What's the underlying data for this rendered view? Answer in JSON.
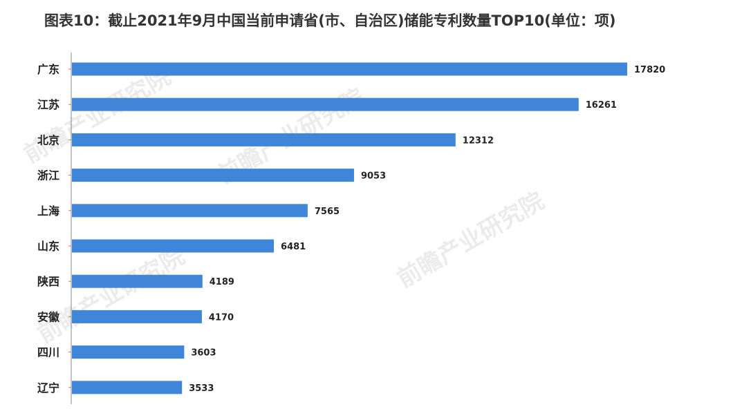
{
  "title": "图表10：截止2021年9月中国当前申请省(市、自治区)储能专利数量TOP10(单位：项)",
  "watermark": "前瞻产业研究院",
  "colors": {
    "bar": "#3f86d8",
    "text": "#222222",
    "axis": "#888888"
  },
  "chart_data": {
    "type": "bar",
    "orientation": "horizontal",
    "title": "图表10：截止2021年9月中国当前申请省(市、自治区)储能专利数量TOP10(单位：项)",
    "categories": [
      "广东",
      "江苏",
      "北京",
      "浙江",
      "上海",
      "山东",
      "陕西",
      "安徽",
      "四川",
      "辽宁"
    ],
    "values": [
      17820,
      16261,
      12312,
      9053,
      7565,
      6481,
      4189,
      4170,
      3603,
      3533
    ],
    "data_labels": true,
    "grid": false,
    "legend": "none"
  }
}
